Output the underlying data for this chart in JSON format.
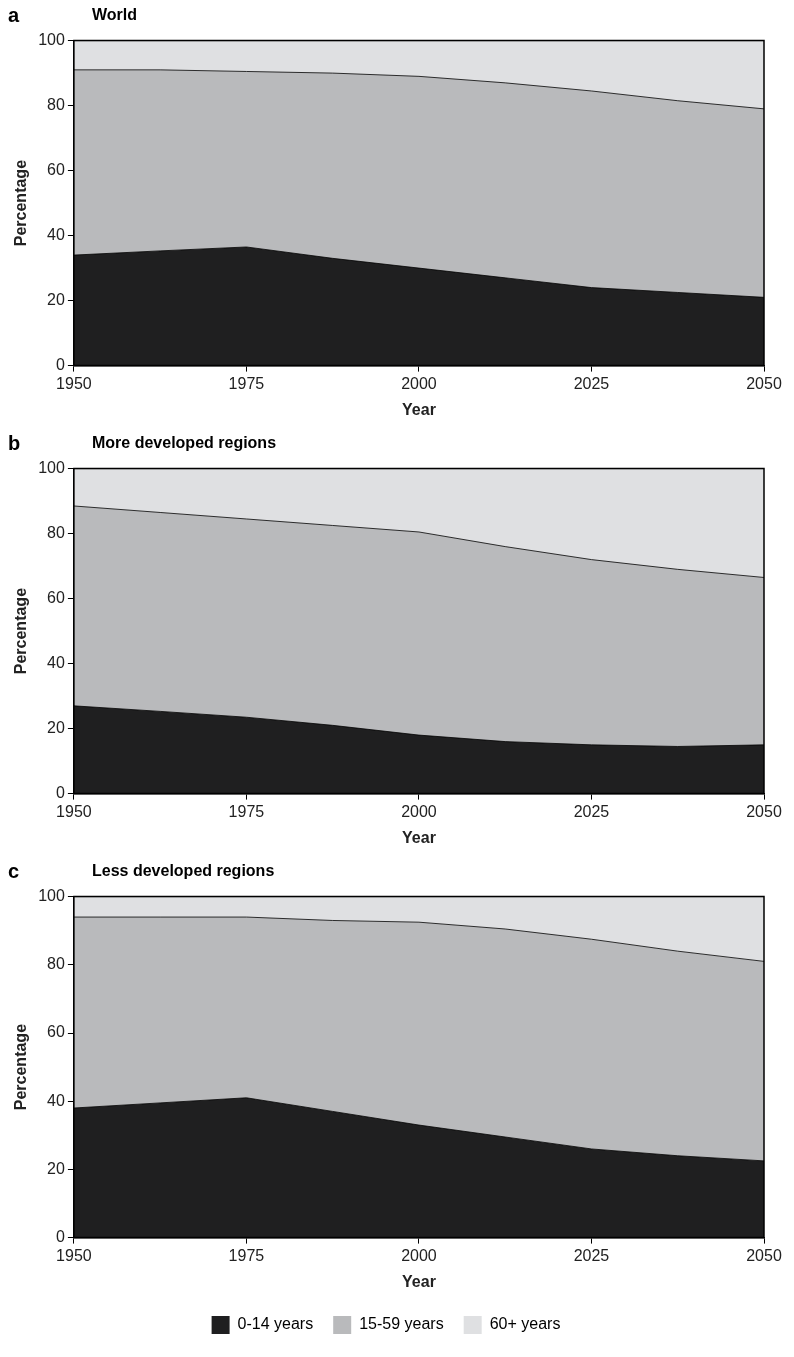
{
  "chart_data": [
    {
      "type": "area",
      "title": "World",
      "annotations": [
        "a"
      ],
      "xlabel": "Year",
      "ylabel": "Percentage",
      "stacked": true,
      "grid": false,
      "legend": false,
      "x": [
        1950,
        1962.5,
        1975,
        1987.5,
        2000,
        2012.5,
        2025,
        2037.5,
        2050
      ],
      "xlim": [
        1950,
        2050
      ],
      "xticks": [
        1950,
        1975,
        2000,
        2025,
        2050
      ],
      "ylim": [
        0,
        100
      ],
      "yticks": [
        0,
        20,
        40,
        60,
        80,
        100
      ],
      "series": [
        {
          "color": "#1f1f20",
          "values": [
            34,
            35.3,
            36.5,
            33,
            30,
            27,
            24,
            22.5,
            21
          ]
        },
        {
          "color": "#b9babc",
          "values": [
            57,
            55.7,
            54,
            57,
            59,
            60,
            60.5,
            59,
            58
          ]
        },
        {
          "color": "#dfe0e2",
          "values": [
            9,
            9,
            9.5,
            10,
            11,
            13,
            15.5,
            18.5,
            21
          ]
        }
      ]
    },
    {
      "type": "area",
      "title": "More developed regions",
      "annotations": [
        "b"
      ],
      "xlabel": "Year",
      "ylabel": "Percentage",
      "stacked": true,
      "grid": false,
      "legend": false,
      "x": [
        1950,
        1962.5,
        1975,
        1987.5,
        2000,
        2012.5,
        2025,
        2037.5,
        2050
      ],
      "xlim": [
        1950,
        2050
      ],
      "xticks": [
        1950,
        1975,
        2000,
        2025,
        2050
      ],
      "ylim": [
        0,
        100
      ],
      "yticks": [
        0,
        20,
        40,
        60,
        80,
        100
      ],
      "series": [
        {
          "color": "#1f1f20",
          "values": [
            27,
            25.3,
            23.5,
            21,
            18,
            16,
            15,
            14.5,
            15
          ]
        },
        {
          "color": "#b9babc",
          "values": [
            61.5,
            61.2,
            61,
            61.5,
            62.5,
            60,
            57,
            54.5,
            51.5
          ]
        },
        {
          "color": "#dfe0e2",
          "values": [
            11.5,
            13.5,
            15.5,
            17.5,
            19.5,
            24,
            28,
            31,
            33.5
          ]
        }
      ]
    },
    {
      "type": "area",
      "title": "Less developed regions",
      "annotations": [
        "c"
      ],
      "xlabel": "Year",
      "ylabel": "Percentage",
      "stacked": true,
      "grid": false,
      "legend": "bottom",
      "x": [
        1950,
        1962.5,
        1975,
        1987.5,
        2000,
        2012.5,
        2025,
        2037.5,
        2050
      ],
      "xlim": [
        1950,
        2050
      ],
      "xticks": [
        1950,
        1975,
        2000,
        2025,
        2050
      ],
      "ylim": [
        0,
        100
      ],
      "yticks": [
        0,
        20,
        40,
        60,
        80,
        100
      ],
      "series": [
        {
          "name": "0-14 years",
          "color": "#1f1f20",
          "values": [
            38,
            39.5,
            41,
            37,
            33,
            29.5,
            26,
            24,
            22.5
          ]
        },
        {
          "name": "15-59 years",
          "color": "#b9babc",
          "values": [
            56,
            54.5,
            53,
            56,
            59.5,
            61,
            61.5,
            60,
            58.5
          ]
        },
        {
          "name": "60+ years",
          "color": "#dfe0e2",
          "values": [
            6,
            6,
            6,
            7,
            7.5,
            9.5,
            12.5,
            16,
            19
          ]
        }
      ]
    }
  ]
}
